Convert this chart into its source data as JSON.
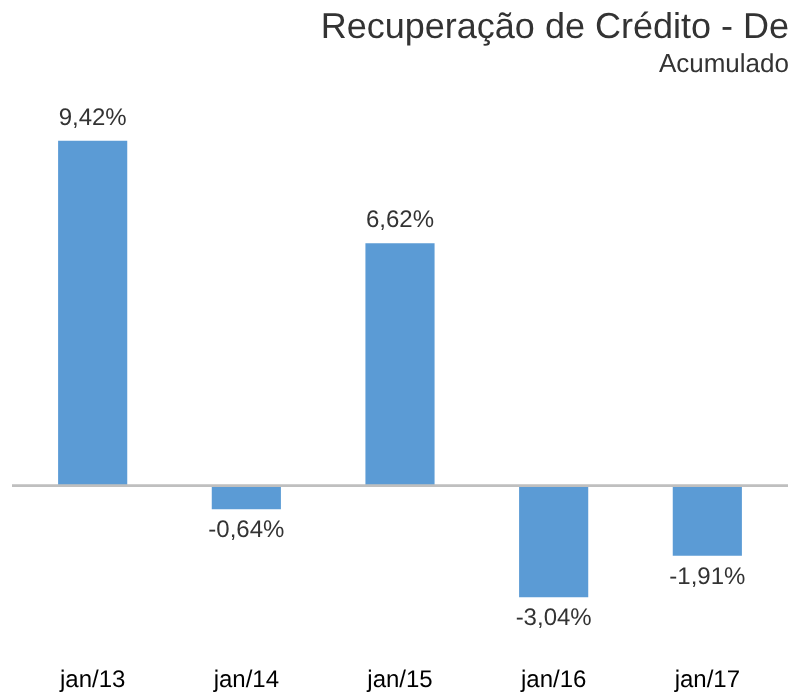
{
  "chart_data": {
    "type": "bar",
    "title": "Recuperação de Crédito - De",
    "subtitle": "Acumulado",
    "categories": [
      "jan/13",
      "jan/14",
      "jan/15",
      "jan/16",
      "jan/17"
    ],
    "values": [
      9.42,
      -0.64,
      6.62,
      -3.04,
      -1.91
    ],
    "value_labels": [
      "9,42%",
      "-0,64%",
      "6,62%",
      "-3,04%",
      "-1,91%"
    ],
    "color": "#5b9bd5",
    "grid": false
  }
}
